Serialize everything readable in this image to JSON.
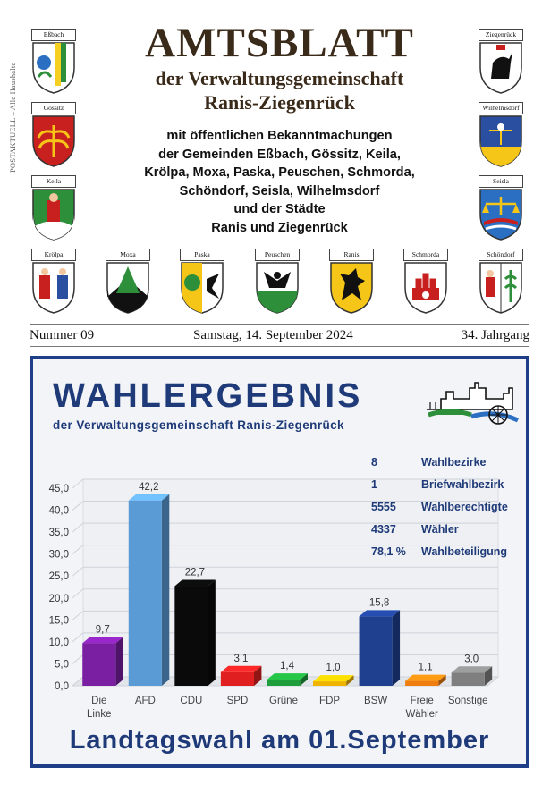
{
  "side_note": "POSTAKTUELL – Alle Haushalte",
  "masthead": {
    "title": "AMTSBLATT",
    "line1": "der Verwaltungsgemeinschaft",
    "line2": "Ranis-Ziegenrück"
  },
  "notice": [
    "mit öffentlichen Bekanntmachungen",
    "der Gemeinden Eßbach, Gössitz, Keila,",
    "Krölpa, Moxa, Paska, Peuschen, Schmorda,",
    "Schöndorf, Seisla, Wilhelmsdorf",
    "und der Städte",
    "Ranis und Ziegenrück"
  ],
  "crests": {
    "essbach": "Eßbach",
    "goessitz": "Gössitz",
    "keila": "Keila",
    "kroelpa": "Krölpa",
    "moxa": "Moxa",
    "paska": "Paska",
    "peuschen": "Peuschen",
    "ranis": "Ranis",
    "schmorda": "Schmorda",
    "schoendorf": "Schöndorf",
    "ziegenrueck": "Ziegenrück",
    "wilhelmsdorf": "Wilhelmsdorf",
    "seisla": "Seisla"
  },
  "issue": {
    "number": "Nummer 09",
    "date": "Samstag, 14. September 2024",
    "volume": "34. Jahrgang"
  },
  "poster": {
    "title": "WAHLERGEBNIS",
    "subtitle": "der Verwaltungsgemeinschaft Ranis-Ziegenrück",
    "footer": "Landtagswahl am 01.September",
    "stats": [
      {
        "value": "8",
        "label": "Wahlbezirke"
      },
      {
        "value": "1",
        "label": "Briefwahlbezirk"
      },
      {
        "value": "5555",
        "label": "Wahlberechtigte"
      },
      {
        "value": "4337",
        "label": "Wähler"
      },
      {
        "value": "78,1 %",
        "label": "Wahlbeteiligung"
      }
    ]
  },
  "chart_data": {
    "type": "bar",
    "categories": [
      [
        "Die",
        "Linke"
      ],
      [
        "AFD"
      ],
      [
        "CDU"
      ],
      [
        "SPD"
      ],
      [
        "Grüne"
      ],
      [
        "FDP"
      ],
      [
        "BSW"
      ],
      [
        "Freie",
        "Wähler"
      ],
      [
        "Sonstige"
      ]
    ],
    "values": [
      9.7,
      42.2,
      22.7,
      3.1,
      1.4,
      1.0,
      15.8,
      1.1,
      3.0
    ],
    "value_labels": [
      "9,7",
      "42,2",
      "22,7",
      "3,1",
      "1,4",
      "1,0",
      "15,8",
      "1,1",
      "3,0"
    ],
    "colors": [
      "#7a1fa2",
      "#5b9bd5",
      "#0a0a0a",
      "#e02020",
      "#1e9e3a",
      "#f0b400",
      "#1f3f8f",
      "#ef7d0f",
      "#7f7f7f"
    ],
    "yticks": [
      "0,0",
      "5,0",
      "10,0",
      "15,0",
      "20,0",
      "25,0",
      "30,0",
      "35,0",
      "40,0",
      "45,0"
    ],
    "ylim": [
      0,
      45
    ],
    "grid": true
  },
  "colors": {
    "poster_border": "#1e3e88",
    "poster_text": "#1f3a78",
    "masthead_text": "#3a2a1a"
  }
}
